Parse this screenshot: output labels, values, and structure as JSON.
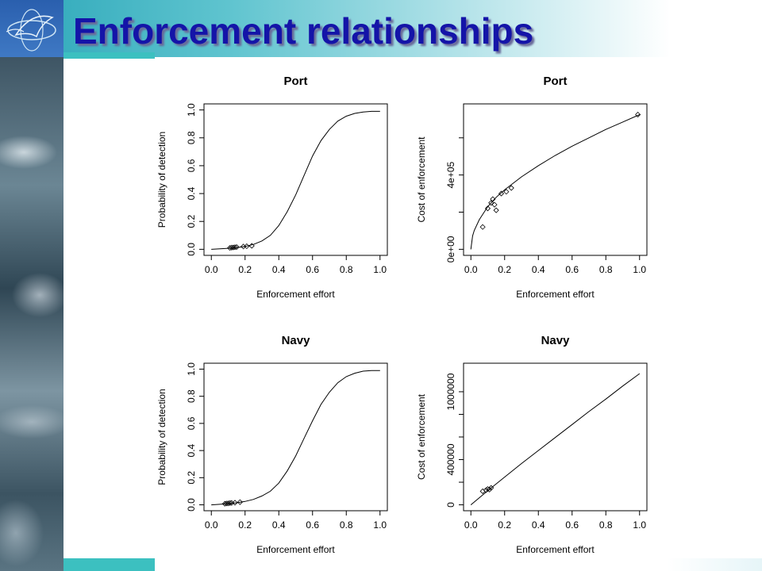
{
  "slide": {
    "title": "Enforcement relationships",
    "logo_icon": "fish-globe-logo-icon",
    "colors": {
      "title": "#1414a8",
      "banner_start": "#2aa6b8",
      "strip": "#3cc0c0"
    }
  },
  "chart_data": [
    {
      "type": "line",
      "title": "Port",
      "xlabel": "Enforcement effort",
      "ylabel": "Probability of detection",
      "xlim": [
        0,
        1
      ],
      "ylim": [
        0,
        1
      ],
      "xticks": [
        "0.0",
        "0.2",
        "0.4",
        "0.6",
        "0.8",
        "1.0"
      ],
      "yticks": [
        "0.0",
        "0.2",
        "0.4",
        "0.6",
        "0.8",
        "1.0"
      ],
      "curve": {
        "x": [
          0.0,
          0.05,
          0.1,
          0.15,
          0.2,
          0.25,
          0.3,
          0.35,
          0.4,
          0.45,
          0.5,
          0.55,
          0.6,
          0.65,
          0.7,
          0.75,
          0.8,
          0.85,
          0.9,
          0.95,
          1.0
        ],
        "y": [
          0.0,
          0.003,
          0.007,
          0.012,
          0.02,
          0.035,
          0.06,
          0.1,
          0.17,
          0.27,
          0.39,
          0.53,
          0.67,
          0.78,
          0.86,
          0.92,
          0.955,
          0.975,
          0.985,
          0.99,
          0.99
        ]
      },
      "points": {
        "x": [
          0.11,
          0.12,
          0.13,
          0.14,
          0.15,
          0.19,
          0.21,
          0.24
        ],
        "y": [
          0.01,
          0.012,
          0.013,
          0.015,
          0.016,
          0.02,
          0.022,
          0.025
        ]
      }
    },
    {
      "type": "line",
      "title": "Port",
      "xlabel": "Enforcement effort",
      "ylabel": "Cost of enforcement",
      "xlim": [
        0,
        1
      ],
      "ylim": [
        0,
        750000
      ],
      "xticks": [
        "0.0",
        "0.2",
        "0.4",
        "0.6",
        "0.8",
        "1.0"
      ],
      "ytick_values": [
        0,
        200000,
        400000,
        600000
      ],
      "ytick_labels": [
        "0e+00",
        "",
        "4e+05",
        ""
      ],
      "curve": {
        "x": [
          0.0,
          0.01,
          0.02,
          0.05,
          0.1,
          0.15,
          0.2,
          0.3,
          0.4,
          0.5,
          0.6,
          0.7,
          0.8,
          0.9,
          1.0
        ],
        "y": [
          0,
          72000,
          102000,
          160000,
          230000,
          280000,
          320000,
          390000,
          450000,
          505000,
          555000,
          600000,
          645000,
          685000,
          725000
        ]
      },
      "points": {
        "x": [
          0.07,
          0.1,
          0.12,
          0.13,
          0.14,
          0.15,
          0.18,
          0.21,
          0.24,
          0.99
        ],
        "y": [
          120000,
          220000,
          250000,
          270000,
          240000,
          210000,
          300000,
          310000,
          330000,
          725000
        ]
      }
    },
    {
      "type": "line",
      "title": "Navy",
      "xlabel": "Enforcement effort",
      "ylabel": "Probability of detection",
      "xlim": [
        0,
        1
      ],
      "ylim": [
        0,
        1
      ],
      "xticks": [
        "0.0",
        "0.2",
        "0.4",
        "0.6",
        "0.8",
        "1.0"
      ],
      "yticks": [
        "0.0",
        "0.2",
        "0.4",
        "0.6",
        "0.8",
        "1.0"
      ],
      "curve": {
        "x": [
          0.0,
          0.05,
          0.1,
          0.15,
          0.2,
          0.25,
          0.3,
          0.35,
          0.4,
          0.45,
          0.5,
          0.55,
          0.6,
          0.65,
          0.7,
          0.75,
          0.8,
          0.85,
          0.9,
          0.95,
          1.0
        ],
        "y": [
          0.0,
          0.004,
          0.009,
          0.015,
          0.025,
          0.04,
          0.065,
          0.1,
          0.16,
          0.25,
          0.36,
          0.49,
          0.62,
          0.74,
          0.83,
          0.9,
          0.945,
          0.97,
          0.985,
          0.99,
          0.99
        ]
      },
      "points": {
        "x": [
          0.08,
          0.09,
          0.1,
          0.11,
          0.12,
          0.14,
          0.17
        ],
        "y": [
          0.008,
          0.01,
          0.011,
          0.013,
          0.014,
          0.016,
          0.02
        ]
      }
    },
    {
      "type": "line",
      "title": "Navy",
      "xlabel": "Enforcement effort",
      "ylabel": "Cost of enforcement",
      "xlim": [
        0,
        1
      ],
      "ylim": [
        0,
        1200000
      ],
      "xticks": [
        "0.0",
        "0.2",
        "0.4",
        "0.6",
        "0.8",
        "1.0"
      ],
      "ytick_values": [
        0,
        200000,
        400000,
        600000,
        800000,
        1000000
      ],
      "ytick_labels": [
        "0",
        "",
        "400000",
        "",
        "",
        "1000000"
      ],
      "curve": {
        "x": [
          0.0,
          0.1,
          0.2,
          0.3,
          0.4,
          0.5,
          0.6,
          0.7,
          0.8,
          0.9,
          1.0
        ],
        "y": [
          0,
          125000,
          245000,
          365000,
          480000,
          595000,
          710000,
          825000,
          935000,
          1050000,
          1160000
        ]
      },
      "points": {
        "x": [
          0.07,
          0.09,
          0.1,
          0.11,
          0.12
        ],
        "y": [
          120000,
          130000,
          140000,
          135000,
          150000
        ]
      }
    }
  ]
}
